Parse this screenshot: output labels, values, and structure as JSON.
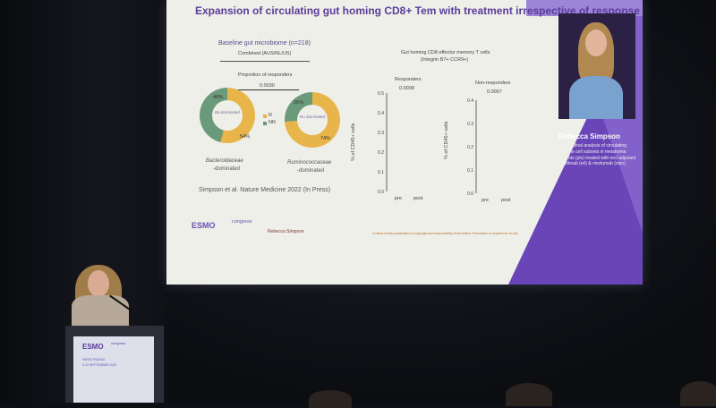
{
  "slide": {
    "title": "Expansion of circulating gut homing CD8+ Tem with treatment irrespective of response",
    "left_panel": {
      "heading": "Baseline gut microbiome (n=218)",
      "subheading": "Combined (AUS/NL/US)",
      "proportion_label": "Proportion of responders",
      "p_value": "0.0030",
      "legend_r": "R",
      "legend_nr": "NR",
      "pie1": {
        "center_label": "Ba dominated",
        "pct_nr": "46%",
        "pct_r": "54%",
        "caption_line1": "Bacteroidaceae",
        "caption_line2": "-dominated",
        "r_fraction": 0.54
      },
      "pie2": {
        "center_label": "Ru dominated",
        "pct_nr": "26%",
        "pct_r": "74%",
        "caption_line1": "Ruminococcaceae",
        "caption_line2": "-dominated",
        "r_fraction": 0.74
      },
      "citation": "Simpson et al. Nature Medicine 2022 (In Press)"
    },
    "right_panel": {
      "heading_line1": "Gut homing CD8 effector memory T cells",
      "heading_line2": "(Integrin B7+ CCR9+)",
      "ylabel": "% of CD45+ cells",
      "responders": {
        "label": "Responders",
        "p_value": "0.0008",
        "ticks": [
          "0.5",
          "0.4",
          "0.3",
          "0.2",
          "0.1",
          "0.0"
        ]
      },
      "nonresponders": {
        "label": "Non-responders",
        "p_value": "0.0067",
        "ticks": [
          "0.4",
          "0.3",
          "0.2",
          "0.1",
          "0.0"
        ]
      },
      "x_pre": "pre",
      "x_post": "post"
    },
    "footer": {
      "logo_text": "ESMO",
      "logo_suffix": "congress",
      "presenter": "Rebecca Simpson",
      "copyright": "Content of this presentation is copyright and responsibility of the author. Permission is required for re-use."
    },
    "speaker": {
      "name": "Rebecca Simpson",
      "info": "Longitudinal analysis of circulating immune cell subsets in melanoma patients (pts) treated with neo adjuvant relatlimab (rel) & nivolumab (nivo)"
    }
  },
  "podium": {
    "logo": "ESMO",
    "suffix": "congress",
    "city": "PARIS FRANCE",
    "dates": "9-13 SEPTEMBER 2022"
  }
}
